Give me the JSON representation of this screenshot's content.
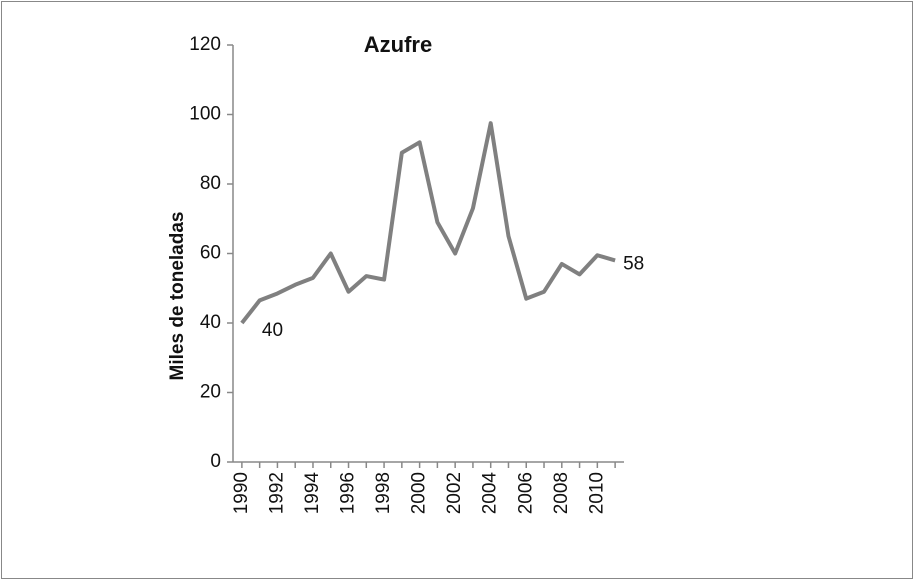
{
  "chart_data": {
    "type": "line",
    "title": "Azufre",
    "y_label": "Miles de toneladas",
    "x": [
      1990,
      1991,
      1992,
      1993,
      1994,
      1995,
      1996,
      1997,
      1998,
      1999,
      2000,
      2001,
      2002,
      2003,
      2004,
      2005,
      2006,
      2007,
      2008,
      2009,
      2010,
      2011
    ],
    "series": [
      {
        "name": "Azufre",
        "color": "#808080",
        "values": [
          40,
          46.5,
          48.5,
          51,
          53,
          60,
          49,
          53.5,
          52.5,
          89,
          92,
          69,
          60,
          73,
          97.5,
          65,
          47,
          49,
          57,
          54,
          59.5,
          58
        ],
        "value_labels": [
          "40",
          null,
          null,
          null,
          null,
          null,
          null,
          null,
          null,
          null,
          null,
          null,
          null,
          null,
          null,
          null,
          null,
          null,
          null,
          null,
          null,
          "58"
        ]
      }
    ],
    "xlim": [
      1989.5,
      2011.5
    ],
    "xticks": [
      1990,
      1992,
      1994,
      1996,
      1998,
      2000,
      2002,
      2004,
      2006,
      2008,
      2010
    ],
    "ylim": [
      0,
      120
    ],
    "yticks": [
      0,
      20,
      40,
      60,
      80,
      100,
      120
    ],
    "grid": false
  }
}
